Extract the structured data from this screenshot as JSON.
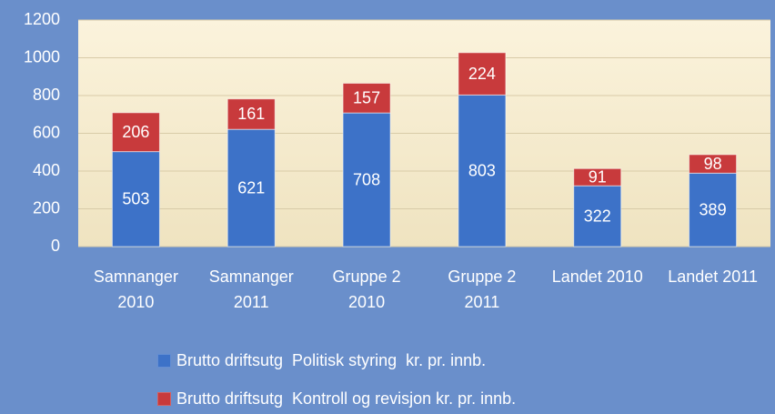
{
  "chart_data": {
    "type": "stacked_bar",
    "categories": [
      "Samnanger 2010",
      "Samnanger 2011",
      "Gruppe 2 2010",
      "Gruppe 2 2011",
      "Landet 2010",
      "Landet 2011"
    ],
    "series": [
      {
        "name": "Brutto driftsutg  Politisk styring  kr. pr. innb.",
        "color": "#3d72c8",
        "values": [
          503,
          621,
          708,
          803,
          322,
          389
        ]
      },
      {
        "name": "Brutto driftsutg  Kontroll og revisjon kr. pr. innb.",
        "color": "#c83a3c",
        "values": [
          206,
          161,
          157,
          224,
          91,
          98
        ]
      }
    ],
    "ylim": [
      0,
      1200
    ],
    "yticks": [
      0,
      200,
      400,
      600,
      800,
      1000,
      1200
    ],
    "grid": true
  }
}
